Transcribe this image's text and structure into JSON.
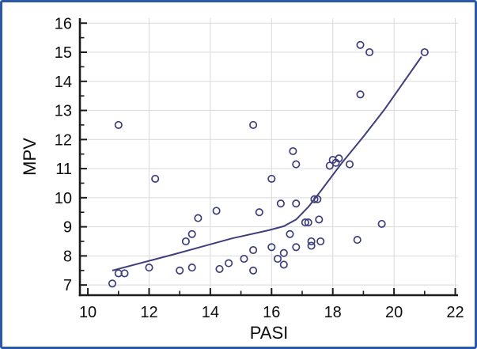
{
  "figure": {
    "border_color": "#2b59a8",
    "background": "#ffffff"
  },
  "chart_data": {
    "type": "scatter",
    "title": "",
    "xlabel": "PASI",
    "ylabel": "MPV",
    "xlim": [
      9.74,
      22.09
    ],
    "ylim": [
      6.65,
      16.17
    ],
    "grid": "on",
    "legend": null,
    "x_axis": {
      "major_tick_values": [
        10,
        12,
        14,
        16,
        18,
        20,
        22
      ],
      "major_tick_labels": [
        "10",
        "12",
        "14",
        "16",
        "18",
        "20",
        "22"
      ],
      "minor_tick_values": [
        11,
        13,
        15,
        17,
        19,
        21
      ],
      "gridline_values": [
        12,
        14,
        16,
        18,
        20,
        22
      ]
    },
    "y_axis": {
      "major_tick_values": [
        7,
        8,
        9,
        10,
        11,
        12,
        13,
        14,
        15,
        16
      ],
      "major_tick_labels": [
        "7",
        "8",
        "9",
        "10",
        "11",
        "12",
        "13",
        "14",
        "15",
        "16"
      ],
      "minor_tick_values": [
        7.5,
        8.5,
        9.5,
        10.5,
        11.5,
        12.5,
        13.5,
        14.5,
        15.5
      ],
      "gridline_values": [
        7,
        8,
        9,
        10,
        11,
        12,
        13,
        14,
        15,
        16
      ]
    },
    "points": [
      [
        10.8,
        7.05
      ],
      [
        11.0,
        7.4
      ],
      [
        11.0,
        12.5
      ],
      [
        11.2,
        7.4
      ],
      [
        12.0,
        7.6
      ],
      [
        12.2,
        10.65
      ],
      [
        13.0,
        7.5
      ],
      [
        13.2,
        8.5
      ],
      [
        13.4,
        7.6
      ],
      [
        13.4,
        8.75
      ],
      [
        13.6,
        9.3
      ],
      [
        14.2,
        9.55
      ],
      [
        14.3,
        7.55
      ],
      [
        14.6,
        7.75
      ],
      [
        15.1,
        7.9
      ],
      [
        15.4,
        7.5
      ],
      [
        15.4,
        8.2
      ],
      [
        15.4,
        12.5
      ],
      [
        15.6,
        9.5
      ],
      [
        16.0,
        8.3
      ],
      [
        16.0,
        10.65
      ],
      [
        16.2,
        7.9
      ],
      [
        16.3,
        9.8
      ],
      [
        16.4,
        7.7
      ],
      [
        16.4,
        8.1
      ],
      [
        16.6,
        8.75
      ],
      [
        16.7,
        11.6
      ],
      [
        16.8,
        8.3
      ],
      [
        16.8,
        9.8
      ],
      [
        16.8,
        11.15
      ],
      [
        17.1,
        9.15
      ],
      [
        17.2,
        9.15
      ],
      [
        17.3,
        8.35
      ],
      [
        17.3,
        8.5
      ],
      [
        17.4,
        9.95
      ],
      [
        17.5,
        9.95
      ],
      [
        17.55,
        9.25
      ],
      [
        17.6,
        8.5
      ],
      [
        17.9,
        11.1
      ],
      [
        18.0,
        11.3
      ],
      [
        18.1,
        11.2
      ],
      [
        18.2,
        11.35
      ],
      [
        18.55,
        11.15
      ],
      [
        18.8,
        8.55
      ],
      [
        18.9,
        13.55
      ],
      [
        18.9,
        15.25
      ],
      [
        19.2,
        15.0
      ],
      [
        19.6,
        9.1
      ],
      [
        21.0,
        15.0
      ]
    ],
    "trend_line": [
      [
        10.8,
        7.5
      ],
      [
        12.8,
        8.05
      ],
      [
        14.7,
        8.6
      ],
      [
        15.9,
        8.88
      ],
      [
        16.4,
        9.02
      ],
      [
        16.8,
        9.25
      ],
      [
        17.2,
        9.68
      ],
      [
        17.6,
        10.22
      ],
      [
        18.3,
        11.2
      ],
      [
        19.0,
        12.1
      ],
      [
        19.7,
        13.05
      ],
      [
        20.9,
        14.85
      ]
    ],
    "colors": {
      "marker": "#3e3e7c",
      "trend": "#3e3e7c",
      "grid": "#d9d9d9",
      "axis": "#1b1b1b",
      "text": "#0d0d0d"
    }
  }
}
